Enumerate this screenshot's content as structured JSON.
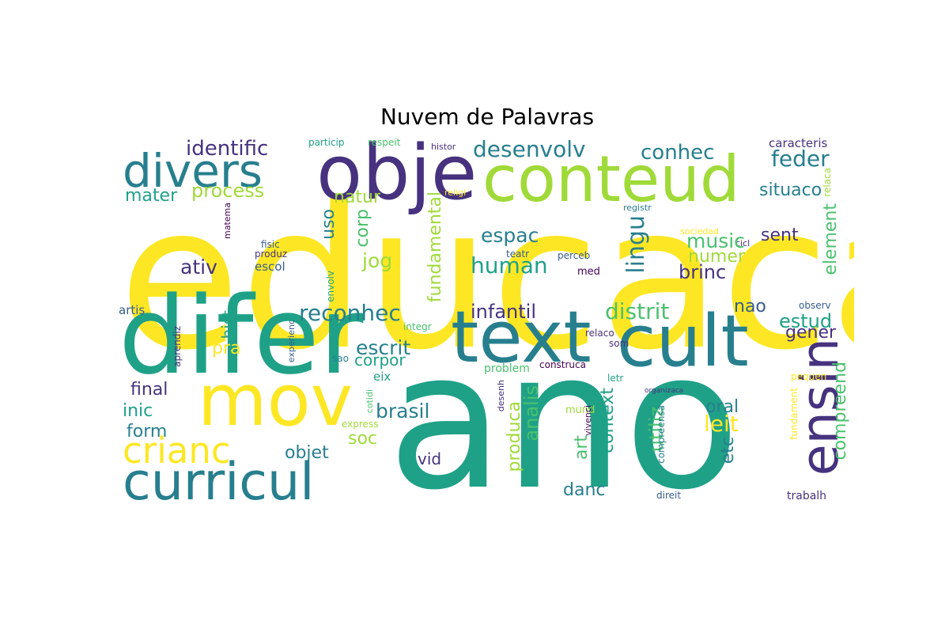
{
  "title": "Nuvem de Palavras",
  "colors": {
    "yellow": "#fde725",
    "lime": "#a0da39",
    "green": "#4ac16d",
    "teal": "#1fa187",
    "cyan": "#277f8e",
    "blue": "#365c8d",
    "indigo": "#46327e",
    "purple": "#440154"
  },
  "words": [
    {
      "text": "educaca"
    },
    {
      "text": "ano"
    },
    {
      "text": "difer"
    },
    {
      "text": "obje"
    },
    {
      "text": "conteud"
    },
    {
      "text": "text"
    },
    {
      "text": "cult"
    },
    {
      "text": "mov"
    },
    {
      "text": "curricul"
    },
    {
      "text": "divers"
    },
    {
      "text": "crianc"
    },
    {
      "text": "ensin"
    },
    {
      "text": "identific"
    },
    {
      "text": "desenvolv"
    },
    {
      "text": "conhec"
    },
    {
      "text": "feder"
    },
    {
      "text": "caracteris"
    },
    {
      "text": "particip"
    },
    {
      "text": "respeit"
    },
    {
      "text": "histor"
    },
    {
      "text": "religi"
    },
    {
      "text": "relaca"
    },
    {
      "text": "situaco"
    },
    {
      "text": "mater"
    },
    {
      "text": "process"
    },
    {
      "text": "natur"
    },
    {
      "text": "registr"
    },
    {
      "text": "cicl"
    },
    {
      "text": "fundamental"
    },
    {
      "text": "uso"
    },
    {
      "text": "corp"
    },
    {
      "text": "espac"
    },
    {
      "text": "lingu"
    },
    {
      "text": "music"
    },
    {
      "text": "sent"
    },
    {
      "text": "element"
    },
    {
      "text": "matema"
    },
    {
      "text": "fisic"
    },
    {
      "text": "produz"
    },
    {
      "text": "escol"
    },
    {
      "text": "jog"
    },
    {
      "text": "human"
    },
    {
      "text": "perceb"
    },
    {
      "text": "sociedad"
    },
    {
      "text": "teatr"
    },
    {
      "text": "numer"
    },
    {
      "text": "brinc"
    },
    {
      "text": "ativ"
    },
    {
      "text": "envolv"
    },
    {
      "text": "med"
    },
    {
      "text": "artis"
    },
    {
      "text": "hist"
    },
    {
      "text": "reconhec"
    },
    {
      "text": "infantil"
    },
    {
      "text": "distrit"
    },
    {
      "text": "nao"
    },
    {
      "text": "observ"
    },
    {
      "text": "estud"
    },
    {
      "text": "aprendiz"
    },
    {
      "text": "pra"
    },
    {
      "text": "experienc"
    },
    {
      "text": "integr"
    },
    {
      "text": "escrit"
    },
    {
      "text": "relaco"
    },
    {
      "text": "som"
    },
    {
      "text": "gener"
    },
    {
      "text": "sao"
    },
    {
      "text": "corpor"
    },
    {
      "text": "problem"
    },
    {
      "text": "construca"
    },
    {
      "text": "eix"
    },
    {
      "text": "letr"
    },
    {
      "text": "pequen"
    },
    {
      "text": "final"
    },
    {
      "text": "cotidi"
    },
    {
      "text": "desenh"
    },
    {
      "text": "organizaca"
    },
    {
      "text": "inic"
    },
    {
      "text": "brasil"
    },
    {
      "text": "analis"
    },
    {
      "text": "produca"
    },
    {
      "text": "context"
    },
    {
      "text": "utiliz"
    },
    {
      "text": "oral"
    },
    {
      "text": "compreend"
    },
    {
      "text": "express"
    },
    {
      "text": "form"
    },
    {
      "text": "leit"
    },
    {
      "text": "soc"
    },
    {
      "text": "mund"
    },
    {
      "text": "vivenci"
    },
    {
      "text": "compreensa"
    },
    {
      "text": "fundament"
    },
    {
      "text": "objet"
    },
    {
      "text": "art"
    },
    {
      "text": "etc"
    },
    {
      "text": "vid"
    },
    {
      "text": "danc"
    },
    {
      "text": "direit"
    },
    {
      "text": "trabalh"
    }
  ]
}
